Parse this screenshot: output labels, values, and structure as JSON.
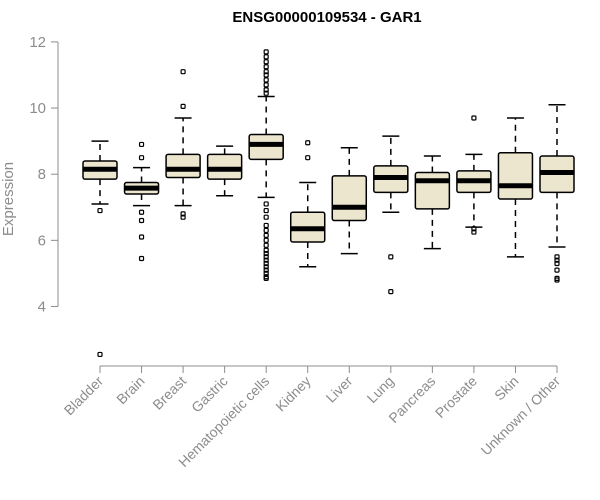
{
  "chart_data": {
    "type": "box",
    "title": "ENSG00000109534 - GAR1",
    "ylabel": "Expression",
    "xlabel": "",
    "ylim": [
      2.2,
      12.3
    ],
    "yticks": [
      4,
      6,
      8,
      10,
      12
    ],
    "categories": [
      "Bladder",
      "Brain",
      "Breast",
      "Gastric",
      "Hematopoietic cells",
      "Kidney",
      "Liver",
      "Lung",
      "Pancreas",
      "Prostate",
      "Skin",
      "Unknown / Other"
    ],
    "boxes": [
      {
        "name": "Bladder",
        "whislo": 7.1,
        "q1": 7.85,
        "med": 8.15,
        "q3": 8.4,
        "whishi": 9.0,
        "outliers": [
          6.9,
          2.55
        ]
      },
      {
        "name": "Brain",
        "whislo": 7.05,
        "q1": 7.4,
        "med": 7.58,
        "q3": 7.75,
        "whishi": 8.2,
        "outliers": [
          8.5,
          8.9,
          6.85,
          6.6,
          6.1,
          5.45
        ]
      },
      {
        "name": "Breast",
        "whislo": 7.05,
        "q1": 7.9,
        "med": 8.15,
        "q3": 8.6,
        "whishi": 9.7,
        "outliers": [
          10.05,
          11.1,
          6.8,
          6.7
        ]
      },
      {
        "name": "Gastric",
        "whislo": 7.35,
        "q1": 7.85,
        "med": 8.15,
        "q3": 8.6,
        "whishi": 8.85,
        "outliers": []
      },
      {
        "name": "Hematopoietic cells",
        "whislo": 7.3,
        "q1": 8.45,
        "med": 8.9,
        "q3": 9.2,
        "whishi": 10.35,
        "outliers": [
          10.45,
          10.55,
          10.7,
          10.85,
          11.0,
          11.1,
          11.25,
          11.4,
          11.55,
          11.7,
          7.1,
          6.9,
          6.7,
          6.45,
          6.3,
          6.15,
          6.0,
          5.85,
          5.7,
          5.6,
          5.5,
          5.4,
          5.3,
          5.2,
          5.1,
          5.0,
          4.9,
          4.85
        ]
      },
      {
        "name": "Kidney",
        "whislo": 5.2,
        "q1": 5.95,
        "med": 6.35,
        "q3": 6.85,
        "whishi": 7.75,
        "outliers": [
          8.5,
          8.95
        ]
      },
      {
        "name": "Liver",
        "whislo": 5.6,
        "q1": 6.6,
        "med": 7.0,
        "q3": 7.95,
        "whishi": 8.8,
        "outliers": []
      },
      {
        "name": "Lung",
        "whislo": 6.85,
        "q1": 7.45,
        "med": 7.9,
        "q3": 8.25,
        "whishi": 9.15,
        "outliers": [
          5.5,
          4.45
        ]
      },
      {
        "name": "Pancreas",
        "whislo": 5.75,
        "q1": 6.95,
        "med": 7.8,
        "q3": 8.05,
        "whishi": 8.55,
        "outliers": []
      },
      {
        "name": "Prostate",
        "whislo": 6.4,
        "q1": 7.45,
        "med": 7.8,
        "q3": 8.1,
        "whishi": 8.6,
        "outliers": [
          9.7,
          6.35,
          6.25
        ]
      },
      {
        "name": "Skin",
        "whislo": 5.5,
        "q1": 7.25,
        "med": 7.65,
        "q3": 8.65,
        "whishi": 9.7,
        "outliers": []
      },
      {
        "name": "Unknown / Other",
        "whislo": 5.8,
        "q1": 7.45,
        "med": 8.05,
        "q3": 8.55,
        "whishi": 10.1,
        "outliers": [
          5.5,
          5.4,
          5.3,
          5.1,
          4.85,
          4.8
        ]
      }
    ]
  }
}
